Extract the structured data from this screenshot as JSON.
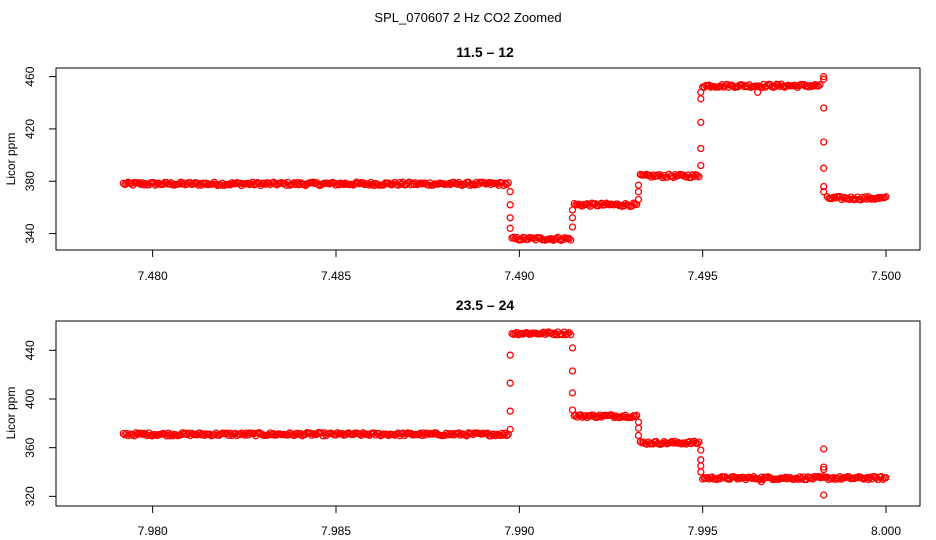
{
  "page_title": "SPL_070607  2 Hz CO2 Zoomed",
  "colors": {
    "points": "#ff0000",
    "axes": "#000000",
    "background": "#ffffff"
  },
  "chart_data": [
    {
      "type": "scatter",
      "title": "11.5 – 12",
      "xlabel": "",
      "ylabel": "Licor ppm",
      "xlim": [
        7.479,
        7.5
      ],
      "ylim": [
        332,
        462
      ],
      "xticks": [
        7.48,
        7.485,
        7.49,
        7.495,
        7.5
      ],
      "xtick_labels": [
        "7.480",
        "7.485",
        "7.490",
        "7.495",
        "7.500"
      ],
      "yticks": [
        340,
        380,
        420,
        460
      ],
      "ytick_labels": [
        "340",
        "380",
        "420",
        "460"
      ],
      "marker": "open-circle",
      "grid": false,
      "segments": [
        {
          "x": [
            7.4792,
            7.4897
          ],
          "y": 378
        },
        {
          "x": [
            7.4898,
            7.4914
          ],
          "y": 336
        },
        {
          "x": [
            7.4915,
            7.4932
          ],
          "y": 362
        },
        {
          "x": [
            7.4933,
            7.4949
          ],
          "y": 384
        },
        {
          "x": [
            7.495,
            7.4982
          ],
          "y": 453
        },
        {
          "x": [
            7.4984,
            7.5
          ],
          "y": 367
        }
      ],
      "transitions": [
        {
          "x": 7.48975,
          "y": [
            372,
            362,
            352,
            344
          ]
        },
        {
          "x": 7.49145,
          "y": [
            345,
            352,
            358
          ]
        },
        {
          "x": 7.49325,
          "y": [
            366,
            372,
            377
          ]
        },
        {
          "x": 7.49495,
          "y": [
            392,
            405,
            425,
            443,
            448
          ]
        },
        {
          "x": 7.4983,
          "y": [
            458,
            436,
            410,
            390,
            376,
            372
          ]
        }
      ],
      "outliers": [
        {
          "x": 7.4983,
          "y": 460
        },
        {
          "x": 7.4965,
          "y": 448
        }
      ]
    },
    {
      "type": "scatter",
      "title": "23.5 – 24",
      "xlabel": "",
      "ylabel": "Licor ppm",
      "xlim": [
        7.979,
        8.0
      ],
      "ylim": [
        317,
        460
      ],
      "xticks": [
        7.98,
        7.985,
        7.99,
        7.995,
        8.0
      ],
      "xtick_labels": [
        "7.980",
        "7.985",
        "7.990",
        "7.995",
        "8.000"
      ],
      "yticks": [
        320,
        360,
        400,
        440
      ],
      "ytick_labels": [
        "320",
        "360",
        "400",
        "440"
      ],
      "marker": "open-circle",
      "grid": false,
      "segments": [
        {
          "x": [
            7.9792,
            7.9897
          ],
          "y": 371
        },
        {
          "x": [
            7.9898,
            7.9914
          ],
          "y": 454
        },
        {
          "x": [
            7.9915,
            7.9932
          ],
          "y": 386
        },
        {
          "x": [
            7.9933,
            7.9949
          ],
          "y": 364
        },
        {
          "x": [
            7.995,
            8.0
          ],
          "y": 335
        }
      ],
      "transitions": [
        {
          "x": 7.98975,
          "y": [
            375,
            390,
            413,
            436
          ]
        },
        {
          "x": 7.99145,
          "y": [
            442,
            423,
            405,
            391
          ]
        },
        {
          "x": 7.99325,
          "y": [
            381,
            376,
            370
          ]
        },
        {
          "x": 7.99495,
          "y": [
            358,
            350,
            345,
            340
          ]
        }
      ],
      "outliers": [
        {
          "x": 7.9983,
          "y": 359
        },
        {
          "x": 7.9983,
          "y": 321
        },
        {
          "x": 7.9983,
          "y": 344
        },
        {
          "x": 7.9983,
          "y": 342
        },
        {
          "x": 7.9966,
          "y": 332
        }
      ]
    }
  ]
}
